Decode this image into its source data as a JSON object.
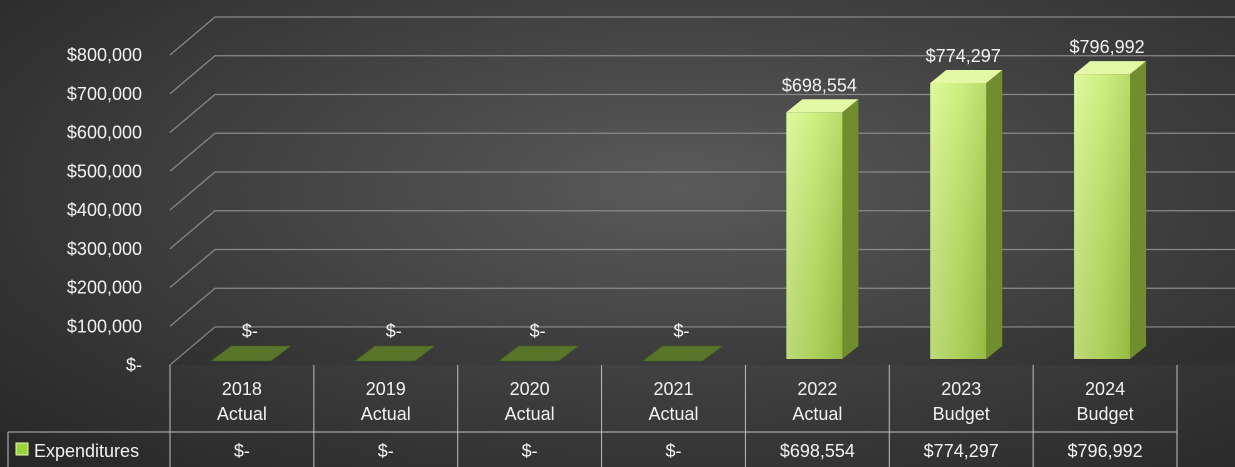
{
  "chart_data": {
    "type": "bar",
    "categories": [
      [
        "2018",
        "Actual"
      ],
      [
        "2019",
        "Actual"
      ],
      [
        "2020",
        "Actual"
      ],
      [
        "2021",
        "Actual"
      ],
      [
        "2022",
        "Actual"
      ],
      [
        "2023",
        "Budget"
      ],
      [
        "2024",
        "Budget"
      ]
    ],
    "series": [
      {
        "name": "Expenditures",
        "values": [
          0,
          0,
          0,
          0,
          698554,
          774297,
          796992
        ],
        "labels": [
          "$-",
          "$-",
          "$-",
          "$-",
          "$698,554",
          "$774,297",
          "$796,992"
        ]
      }
    ],
    "ylim": [
      0,
      800000
    ],
    "yticks": [
      0,
      100000,
      200000,
      300000,
      400000,
      500000,
      600000,
      700000,
      800000
    ],
    "ytick_labels": [
      "$-",
      "$100,000",
      "$200,000",
      "$300,000",
      "$400,000",
      "$500,000",
      "$600,000",
      "$700,000",
      "$800,000"
    ],
    "grid": true,
    "three_d": true,
    "data_table": true,
    "colors": {
      "bar_front": "#c6ef6e",
      "bar_side": "#6f8f2e",
      "bar_top": "#e4f8a6",
      "bar_zero": "#58752a",
      "grid": "#8a8a8a",
      "text": "#f2f2f2",
      "legend_key": "#9bd43a"
    }
  }
}
